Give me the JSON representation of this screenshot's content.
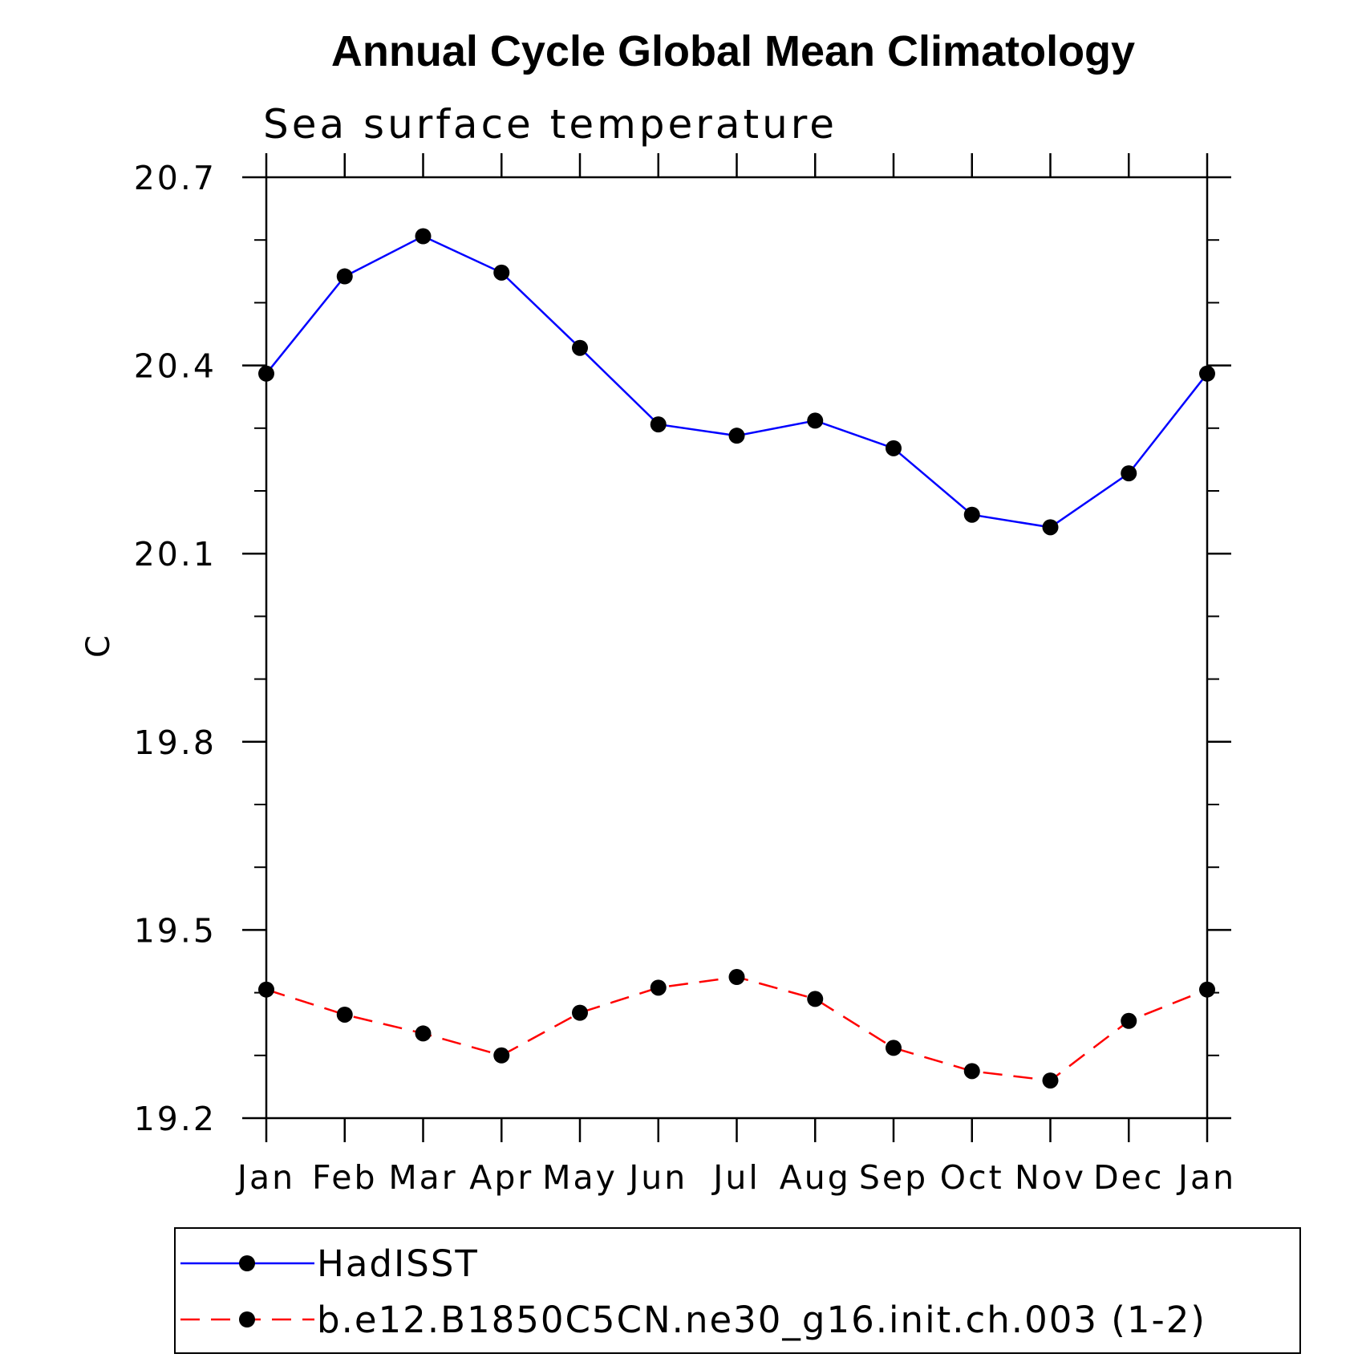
{
  "chart_data": {
    "type": "line",
    "title": "Annual Cycle Global Mean Climatology",
    "subtitle": "Sea surface temperature",
    "xlabel": "",
    "ylabel": "C",
    "categories": [
      "Jan",
      "Feb",
      "Mar",
      "Apr",
      "May",
      "Jun",
      "Jul",
      "Aug",
      "Sep",
      "Oct",
      "Nov",
      "Dec",
      "Jan"
    ],
    "ylim": [
      19.2,
      20.7
    ],
    "yticks": [
      "19.2",
      "19.5",
      "19.8",
      "20.1",
      "20.4",
      "20.7"
    ],
    "grid": false,
    "legend_position": "bottom",
    "series": [
      {
        "name": "HadISST",
        "color": "#0000ff",
        "line_style": "solid",
        "marker": "filled-circle",
        "values": [
          20.387,
          20.542,
          20.606,
          20.548,
          20.428,
          20.306,
          20.288,
          20.312,
          20.268,
          20.162,
          20.142,
          20.228,
          20.387
        ]
      },
      {
        "name": "b.e12.B1850C5CN.ne30_g16.init.ch.003 (1-2)",
        "color": "#ff0000",
        "line_style": "dashed",
        "marker": "filled-circle",
        "values": [
          19.405,
          19.365,
          19.335,
          19.3,
          19.368,
          19.408,
          19.425,
          19.39,
          19.312,
          19.275,
          19.26,
          19.355,
          19.405
        ]
      }
    ]
  }
}
